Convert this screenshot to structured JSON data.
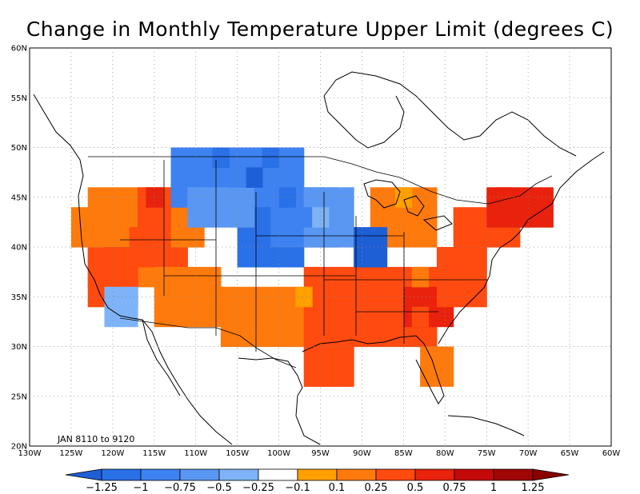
{
  "title": "Change in Monthly Temperature Upper Limit (degrees C)",
  "period": "JAN 8110 to 9120",
  "map": {
    "lon_labels": [
      "130W",
      "125W",
      "120W",
      "115W",
      "110W",
      "105W",
      "100W",
      "95W",
      "90W",
      "85W",
      "80W",
      "75W",
      "70W",
      "65W",
      "60W"
    ],
    "lat_labels": [
      "20N",
      "25N",
      "30N",
      "35N",
      "40N",
      "45N",
      "50N",
      "55N",
      "60N"
    ],
    "lon_range": [
      -130,
      -60
    ],
    "lat_range": [
      20,
      60
    ],
    "grid": "dotted"
  },
  "colorbar": {
    "labels": [
      "-1.25",
      "-1",
      "-0.75",
      "-0.5",
      "-0.25",
      "-0.1",
      "0.1",
      "0.25",
      "0.5",
      "0.75",
      "1",
      "1.25"
    ],
    "colors": [
      "#1e5fd6",
      "#2a70e6",
      "#3d82f0",
      "#5a97f2",
      "#7eb4f7",
      "#ffffff",
      "#ffa000",
      "#ff7a0d",
      "#ff4a10",
      "#e8220c",
      "#c40a08",
      "#a00606",
      "#8a0000"
    ]
  },
  "chart_data": {
    "type": "heatmap",
    "title": "Change in Monthly Temperature Upper Limit (degrees C)",
    "xlim": [
      -130,
      -60
    ],
    "ylim": [
      20,
      60
    ],
    "note_cell_size_deg": 2,
    "cells": [
      [
        "-1.25 to -1",
        -104,
        46
      ],
      [
        "-1 to -0.75",
        -108,
        48
      ],
      [
        "-1 to -0.75",
        -102,
        48
      ],
      [
        "-1 to -0.75",
        -100,
        44
      ],
      [
        "-0.75 to -0.5",
        -106,
        46
      ],
      [
        "-0.75 to -0.5",
        -98,
        42
      ],
      [
        "-0.5 to -0.25",
        -110,
        44
      ],
      [
        "-0.25 to -0.1",
        -96,
        42
      ],
      [
        "0.1 to 0.25",
        -86,
        44
      ],
      [
        "0.1 to 0.25",
        -98,
        34
      ],
      [
        "0.25 to 0.5",
        -84,
        36
      ],
      [
        "0.5 to 0.75",
        -78,
        36
      ],
      [
        "0.5 to 0.75",
        -118,
        40
      ],
      [
        "0.75 to 1",
        -116,
        44
      ],
      [
        "0.75 to 1",
        -74,
        44
      ],
      [
        "0.5 to 0.75",
        -84,
        32
      ]
    ]
  }
}
